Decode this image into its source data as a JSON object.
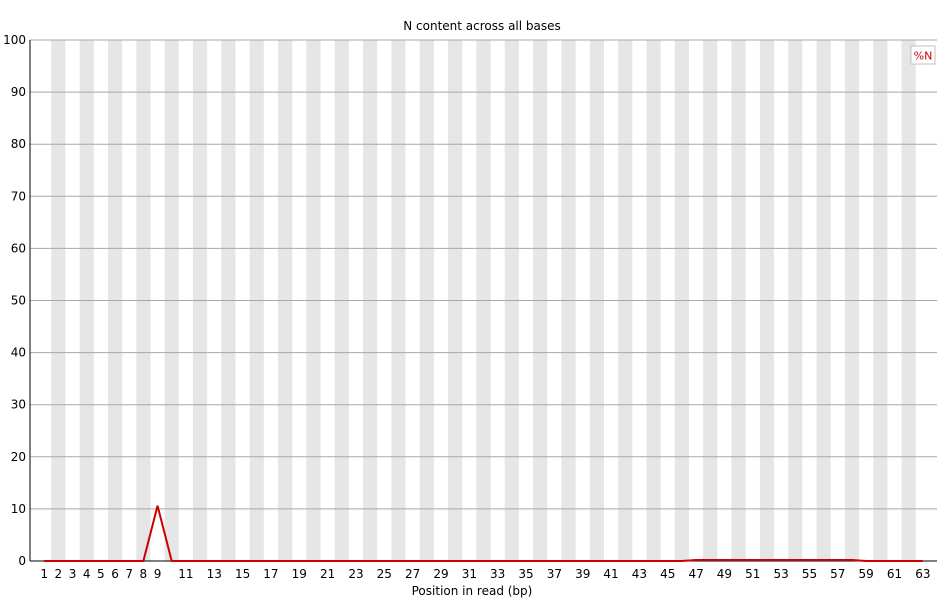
{
  "chart_data": {
    "type": "line",
    "title": "N content across all bases",
    "xlabel": "Position in read (bp)",
    "ylabel": "",
    "ylim": [
      0,
      100
    ],
    "yticks": [
      0,
      10,
      20,
      30,
      40,
      50,
      60,
      70,
      80,
      90,
      100
    ],
    "categories": [
      "1",
      "2",
      "3",
      "4",
      "5",
      "6",
      "7",
      "8",
      "9",
      "10",
      "11",
      "12",
      "13",
      "14",
      "15",
      "16",
      "17",
      "18",
      "19",
      "20",
      "21",
      "22",
      "23",
      "24",
      "25",
      "26",
      "27",
      "28",
      "29",
      "30",
      "31",
      "32",
      "33",
      "34",
      "35",
      "36",
      "37",
      "38",
      "39",
      "40",
      "41",
      "42",
      "43",
      "44",
      "45",
      "46",
      "47",
      "48",
      "49",
      "50",
      "51",
      "52",
      "53",
      "54",
      "55",
      "56",
      "57",
      "58",
      "59",
      "60",
      "61",
      "62",
      "63"
    ],
    "tick_labels": [
      "1",
      "2",
      "3",
      "4",
      "5",
      "6",
      "7",
      "8",
      "9",
      "",
      "11",
      "",
      "13",
      "",
      "15",
      "",
      "17",
      "",
      "19",
      "",
      "21",
      "",
      "23",
      "",
      "25",
      "",
      "27",
      "",
      "29",
      "",
      "31",
      "",
      "33",
      "",
      "35",
      "",
      "37",
      "",
      "39",
      "",
      "41",
      "",
      "43",
      "",
      "45",
      "",
      "47",
      "",
      "49",
      "",
      "51",
      "",
      "53",
      "",
      "55",
      "",
      "57",
      "",
      "59",
      "",
      "61",
      "",
      "63"
    ],
    "grid": true,
    "legend_position": "top-right",
    "series": [
      {
        "name": "%N",
        "color": "#cc0000",
        "values": [
          0,
          0,
          0,
          0,
          0,
          0,
          0,
          0,
          10.6,
          0,
          0,
          0,
          0,
          0,
          0,
          0,
          0,
          0,
          0,
          0,
          0,
          0,
          0,
          0,
          0,
          0,
          0,
          0,
          0,
          0,
          0,
          0,
          0,
          0,
          0,
          0,
          0,
          0,
          0,
          0,
          0,
          0,
          0,
          0,
          0,
          0,
          0.2,
          0.2,
          0.2,
          0.2,
          0.2,
          0.2,
          0.2,
          0.2,
          0.2,
          0.2,
          0.2,
          0.2,
          0,
          0,
          0,
          0,
          0
        ]
      }
    ]
  }
}
